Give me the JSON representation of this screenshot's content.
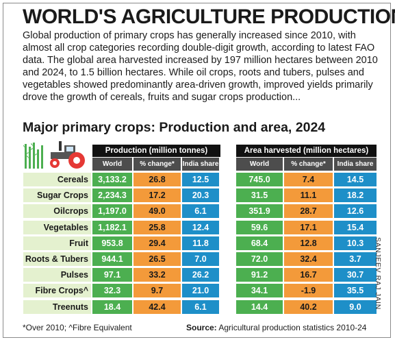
{
  "title": "WORLD'S AGRICULTURE PRODUCTION",
  "intro": "Global production of primary crops has generally increased since 2010, with almost all crop categories recording double-digit growth, according to latest FAO data. The global area harvested increased by 197 million hectares between 2010 and 2024, to 1.5 billion hectares. While oil crops, roots and tubers, pulses and vegetables showed predominantly area-driven growth, improved yields primarily drove the growth of cereals, fruits and sugar crops production...",
  "chart_data": {
    "type": "table",
    "title": "Major primary crops: Production and area, 2024",
    "group_headers": [
      "Production (million tonnes)",
      "Area harvested (million hectares)"
    ],
    "column_headers": [
      "World",
      "% change*",
      "India share",
      "World",
      "% change*",
      "India share"
    ],
    "rows": [
      {
        "crop": "Cereals",
        "values": [
          "3,133.2",
          "26.8",
          "12.5",
          "745.0",
          "7.4",
          "14.5"
        ]
      },
      {
        "crop": "Sugar Crops",
        "values": [
          "2,234.3",
          "17.2",
          "20.3",
          "31.5",
          "11.1",
          "18.2"
        ]
      },
      {
        "crop": "Oilcrops",
        "values": [
          "1,197.0",
          "49.0",
          "6.1",
          "351.9",
          "28.7",
          "12.6"
        ]
      },
      {
        "crop": "Vegetables",
        "values": [
          "1,182.1",
          "25.8",
          "12.4",
          "59.6",
          "17.1",
          "15.4"
        ]
      },
      {
        "crop": "Fruit",
        "values": [
          "953.8",
          "29.4",
          "11.8",
          "68.4",
          "12.8",
          "10.3"
        ]
      },
      {
        "crop": "Roots & Tubers",
        "values": [
          "944.1",
          "26.5",
          "7.0",
          "72.0",
          "32.4",
          "3.7"
        ]
      },
      {
        "crop": "Pulses",
        "values": [
          "97.1",
          "33.2",
          "26.2",
          "91.2",
          "16.7",
          "30.7"
        ]
      },
      {
        "crop": "Fibre Crops^",
        "values": [
          "32.3",
          "9.7",
          "21.0",
          "34.1",
          "-1.9",
          "35.5"
        ]
      },
      {
        "crop": "Treenuts",
        "values": [
          "18.4",
          "42.4",
          "6.1",
          "14.4",
          "40.2",
          "9.0"
        ]
      }
    ]
  },
  "footnote": "*Over 2010; ^Fibre Equivalent",
  "source": {
    "label": "Source:",
    "text": " Agricultural production statistics 2010-24"
  },
  "credit": "SANJEEV RAJ JAIN",
  "colors": {
    "world": "#4caf50",
    "change": "#f39a3a",
    "india": "#1e8fc8",
    "label_bg": "#e4f1cf",
    "header": "#111111"
  },
  "icon": "tractor-field-icon"
}
